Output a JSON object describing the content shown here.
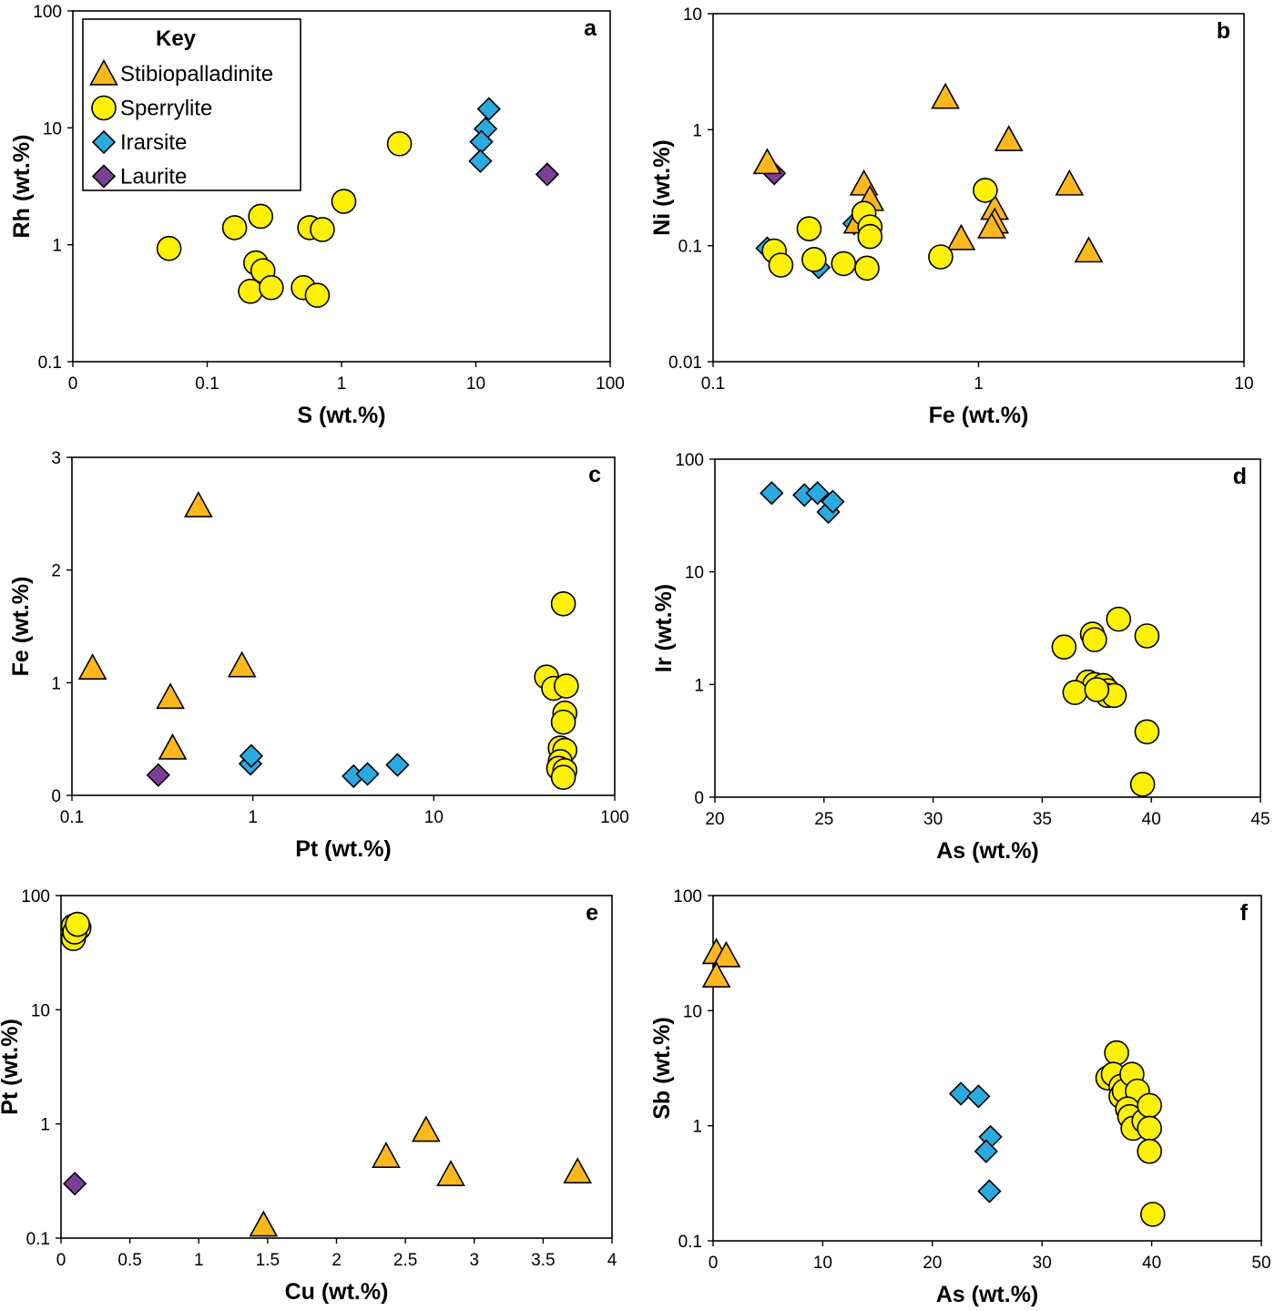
{
  "legend": {
    "title": "Key",
    "entries": [
      {
        "key": "stib",
        "name": "Stibiopalladinite",
        "shape": "triangle",
        "color": "#FFB81C"
      },
      {
        "key": "sper",
        "name": "Sperrylite",
        "shape": "circle",
        "color": "#FFF200"
      },
      {
        "key": "irar",
        "name": "Irarsite",
        "shape": "diamond",
        "color": "#29ABE2"
      },
      {
        "key": "laur",
        "name": "Laurite",
        "shape": "diamond",
        "color": "#7B3F98"
      }
    ]
  },
  "chart_data": [
    {
      "id": "a",
      "type": "scatter",
      "title": "a",
      "xlabel": "S (wt.%)",
      "ylabel": "Rh (wt.%)",
      "xscale": "log",
      "yscale": "log",
      "xlim": [
        0.01,
        100
      ],
      "ylim": [
        0.1,
        100
      ],
      "xticks": [
        {
          "v": 0.01,
          "label": "0"
        },
        {
          "v": 0.1,
          "label": "0.1"
        },
        {
          "v": 1,
          "label": "1"
        },
        {
          "v": 10,
          "label": "10"
        },
        {
          "v": 100,
          "label": "100"
        }
      ],
      "yticks": [
        {
          "v": 0.1,
          "label": "0.1"
        },
        {
          "v": 1,
          "label": "1"
        },
        {
          "v": 10,
          "label": "10"
        },
        {
          "v": 100,
          "label": "100"
        }
      ],
      "series": [
        {
          "key": "sper",
          "name": "Sperrylite",
          "points": [
            [
              0.052,
              0.93
            ],
            [
              0.16,
              1.4
            ],
            [
              0.25,
              1.75
            ],
            [
              0.23,
              0.7
            ],
            [
              0.26,
              0.6
            ],
            [
              0.21,
              0.4
            ],
            [
              0.3,
              0.43
            ],
            [
              0.52,
              0.43
            ],
            [
              0.66,
              0.37
            ],
            [
              0.58,
              1.4
            ],
            [
              0.72,
              1.35
            ],
            [
              1.04,
              2.35
            ],
            [
              2.7,
              7.3
            ]
          ]
        },
        {
          "key": "irar",
          "name": "Irarsite",
          "points": [
            [
              12.5,
              14.5
            ],
            [
              11.8,
              9.8
            ],
            [
              11.0,
              7.6
            ],
            [
              10.8,
              5.2
            ]
          ]
        },
        {
          "key": "laur",
          "name": "Laurite",
          "points": [
            [
              34.0,
              4.0
            ]
          ]
        }
      ]
    },
    {
      "id": "b",
      "type": "scatter",
      "title": "b",
      "xlabel": "Fe (wt.%)",
      "ylabel": "Ni (wt.%)",
      "xscale": "log",
      "yscale": "log",
      "xlim": [
        0.1,
        10
      ],
      "ylim": [
        0.01,
        10
      ],
      "xticks": [
        {
          "v": 0.1,
          "label": "0.1"
        },
        {
          "v": 1,
          "label": "1"
        },
        {
          "v": 10,
          "label": "10"
        }
      ],
      "yticks": [
        {
          "v": 0.01,
          "label": "0.01"
        },
        {
          "v": 0.1,
          "label": "0.1"
        },
        {
          "v": 1,
          "label": "1"
        },
        {
          "v": 10,
          "label": "10"
        }
      ],
      "series": [
        {
          "key": "irar",
          "name": "Irarsite",
          "points": [
            [
              0.16,
              0.095
            ],
            [
              0.25,
              0.065
            ],
            [
              0.34,
              0.155
            ]
          ]
        },
        {
          "key": "laur",
          "name": "Laurite",
          "points": [
            [
              0.17,
              0.42
            ]
          ]
        },
        {
          "key": "stib",
          "name": "Stibiopalladinite",
          "points": [
            [
              0.16,
              0.52
            ],
            [
              0.75,
              1.9
            ],
            [
              1.3,
              0.82
            ],
            [
              0.37,
              0.34
            ],
            [
              0.39,
              0.25
            ],
            [
              0.35,
              0.16
            ],
            [
              1.15,
              0.21
            ],
            [
              1.15,
              0.16
            ],
            [
              1.12,
              0.145
            ],
            [
              0.86,
              0.115
            ],
            [
              2.2,
              0.34
            ],
            [
              2.6,
              0.09
            ]
          ]
        },
        {
          "key": "sper",
          "name": "Sperrylite",
          "points": [
            [
              0.17,
              0.09
            ],
            [
              0.18,
              0.068
            ],
            [
              0.23,
              0.14
            ],
            [
              0.24,
              0.076
            ],
            [
              0.31,
              0.07
            ],
            [
              0.37,
              0.19
            ],
            [
              0.39,
              0.145
            ],
            [
              0.39,
              0.12
            ],
            [
              0.38,
              0.064
            ],
            [
              1.06,
              0.3
            ],
            [
              0.72,
              0.08
            ]
          ]
        }
      ]
    },
    {
      "id": "c",
      "type": "scatter",
      "title": "c",
      "xlabel": "Pt (wt.%)",
      "ylabel": "Fe (wt.%)",
      "xscale": "log",
      "yscale": "linear",
      "xlim": [
        0.1,
        100
      ],
      "ylim": [
        0,
        3
      ],
      "xticks": [
        {
          "v": 0.1,
          "label": "0.1"
        },
        {
          "v": 1,
          "label": "1"
        },
        {
          "v": 10,
          "label": "10"
        },
        {
          "v": 100,
          "label": "100"
        }
      ],
      "yticks": [
        {
          "v": 0,
          "label": "0"
        },
        {
          "v": 1,
          "label": "1"
        },
        {
          "v": 2,
          "label": "2"
        },
        {
          "v": 3,
          "label": "3"
        }
      ],
      "series": [
        {
          "key": "stib",
          "name": "Stibiopalladinite",
          "points": [
            [
              0.13,
              1.13
            ],
            [
              0.5,
              2.57
            ],
            [
              0.35,
              0.87
            ],
            [
              0.36,
              0.42
            ],
            [
              0.87,
              1.15
            ]
          ]
        },
        {
          "key": "irar",
          "name": "Irarsite",
          "points": [
            [
              0.97,
              0.28
            ],
            [
              0.98,
              0.35
            ],
            [
              3.6,
              0.17
            ],
            [
              4.3,
              0.19
            ],
            [
              6.3,
              0.27
            ]
          ]
        },
        {
          "key": "laur",
          "name": "Laurite",
          "points": [
            [
              0.3,
              0.18
            ]
          ]
        },
        {
          "key": "sper",
          "name": "Sperrylite",
          "points": [
            [
              42,
              1.05
            ],
            [
              46,
              0.95
            ],
            [
              52,
              1.7
            ],
            [
              53,
              0.73
            ],
            [
              52,
              0.65
            ],
            [
              50,
              0.42
            ],
            [
              53,
              0.4
            ],
            [
              50,
              0.3
            ],
            [
              49,
              0.24
            ],
            [
              53,
              0.22
            ],
            [
              52,
              0.16
            ],
            [
              54,
              0.97
            ]
          ]
        }
      ]
    },
    {
      "id": "d",
      "type": "scatter",
      "title": "d",
      "xlabel": "As (wt.%)",
      "ylabel": "Ir (wt.%)",
      "xscale": "linear",
      "yscale": "log",
      "xlim": [
        20,
        45
      ],
      "ylim": [
        0.1,
        100
      ],
      "xticks": [
        {
          "v": 20,
          "label": "20"
        },
        {
          "v": 25,
          "label": "25"
        },
        {
          "v": 30,
          "label": "30"
        },
        {
          "v": 35,
          "label": "35"
        },
        {
          "v": 40,
          "label": "40"
        },
        {
          "v": 45,
          "label": "45"
        }
      ],
      "yticks": [
        {
          "v": 0.1,
          "label": "0"
        },
        {
          "v": 1,
          "label": "1"
        },
        {
          "v": 10,
          "label": "10"
        },
        {
          "v": 100,
          "label": "100"
        }
      ],
      "series": [
        {
          "key": "irar",
          "name": "Irarsite",
          "points": [
            [
              22.6,
              50
            ],
            [
              24.1,
              48
            ],
            [
              24.7,
              50
            ],
            [
              25.2,
              34
            ],
            [
              25.4,
              42
            ]
          ]
        },
        {
          "key": "sper",
          "name": "Sperrylite",
          "points": [
            [
              36.0,
              2.15
            ],
            [
              37.3,
              2.8
            ],
            [
              37.4,
              2.5
            ],
            [
              38.5,
              3.8
            ],
            [
              39.8,
              2.7
            ],
            [
              37.1,
              1.05
            ],
            [
              37.4,
              1.0
            ],
            [
              37.8,
              0.98
            ],
            [
              38.0,
              0.88
            ],
            [
              38.0,
              0.8
            ],
            [
              38.3,
              0.8
            ],
            [
              36.5,
              0.85
            ],
            [
              37.5,
              0.9
            ],
            [
              39.8,
              0.38
            ],
            [
              39.6,
              0.13
            ]
          ]
        }
      ]
    },
    {
      "id": "e",
      "type": "scatter",
      "title": "e",
      "xlabel": "Cu (wt.%)",
      "ylabel": "Pt (wt.%)",
      "xscale": "linear",
      "yscale": "log",
      "xlim": [
        0,
        4
      ],
      "ylim": [
        0.1,
        100
      ],
      "xticks": [
        {
          "v": 0,
          "label": "0"
        },
        {
          "v": 0.5,
          "label": "0.5"
        },
        {
          "v": 1,
          "label": "1"
        },
        {
          "v": 1.5,
          "label": "1.5"
        },
        {
          "v": 2,
          "label": "2"
        },
        {
          "v": 2.5,
          "label": "2.5"
        },
        {
          "v": 3,
          "label": "3"
        },
        {
          "v": 3.5,
          "label": "3.5"
        },
        {
          "v": 4,
          "label": "4"
        }
      ],
      "yticks": [
        {
          "v": 0.1,
          "label": "0.1"
        },
        {
          "v": 1,
          "label": "1"
        },
        {
          "v": 10,
          "label": "10"
        },
        {
          "v": 100,
          "label": "100"
        }
      ],
      "series": [
        {
          "key": "sper",
          "name": "Sperrylite",
          "points": [
            [
              0.09,
              54
            ],
            [
              0.13,
              52
            ],
            [
              0.09,
              42
            ],
            [
              0.1,
              48
            ],
            [
              0.12,
              56
            ]
          ]
        },
        {
          "key": "laur",
          "name": "Laurite",
          "points": [
            [
              0.1,
              0.3
            ]
          ]
        },
        {
          "key": "stib",
          "name": "Stibiopalladinite",
          "points": [
            [
              1.47,
              0.13
            ],
            [
              2.36,
              0.52
            ],
            [
              2.65,
              0.88
            ],
            [
              2.83,
              0.36
            ],
            [
              3.75,
              0.38
            ]
          ]
        }
      ]
    },
    {
      "id": "f",
      "type": "scatter",
      "title": "f",
      "xlabel": "As (wt.%)",
      "ylabel": "Sb (wt.%)",
      "xscale": "linear",
      "yscale": "log",
      "xlim": [
        0,
        50
      ],
      "ylim": [
        0.1,
        100
      ],
      "xticks": [
        {
          "v": 0,
          "label": "0"
        },
        {
          "v": 10,
          "label": "10"
        },
        {
          "v": 20,
          "label": "20"
        },
        {
          "v": 30,
          "label": "30"
        },
        {
          "v": 40,
          "label": "40"
        },
        {
          "v": 50,
          "label": "50"
        }
      ],
      "yticks": [
        {
          "v": 0.1,
          "label": "0.1"
        },
        {
          "v": 1,
          "label": "1"
        },
        {
          "v": 10,
          "label": "10"
        },
        {
          "v": 100,
          "label": "100"
        }
      ],
      "series": [
        {
          "key": "stib",
          "name": "Stibiopalladinite",
          "points": [
            [
              0.3,
              32
            ],
            [
              1.2,
              30
            ],
            [
              0.3,
              20
            ]
          ]
        },
        {
          "key": "irar",
          "name": "Irarsite",
          "points": [
            [
              22.6,
              1.9
            ],
            [
              24.2,
              1.8
            ],
            [
              25.3,
              0.8
            ],
            [
              24.9,
              0.6
            ],
            [
              25.2,
              0.27
            ]
          ]
        },
        {
          "key": "sper",
          "name": "Sperrylite",
          "points": [
            [
              36.0,
              2.6
            ],
            [
              36.8,
              4.3
            ],
            [
              36.5,
              2.8
            ],
            [
              37.2,
              2.2
            ],
            [
              37.2,
              1.8
            ],
            [
              37.5,
              2.0
            ],
            [
              38.2,
              2.8
            ],
            [
              38.7,
              2.0
            ],
            [
              37.8,
              1.4
            ],
            [
              38.0,
              1.2
            ],
            [
              38.3,
              0.95
            ],
            [
              39.3,
              1.1
            ],
            [
              39.8,
              1.5
            ],
            [
              39.8,
              0.95
            ],
            [
              39.8,
              0.6
            ],
            [
              40.1,
              0.17
            ]
          ]
        }
      ]
    }
  ]
}
